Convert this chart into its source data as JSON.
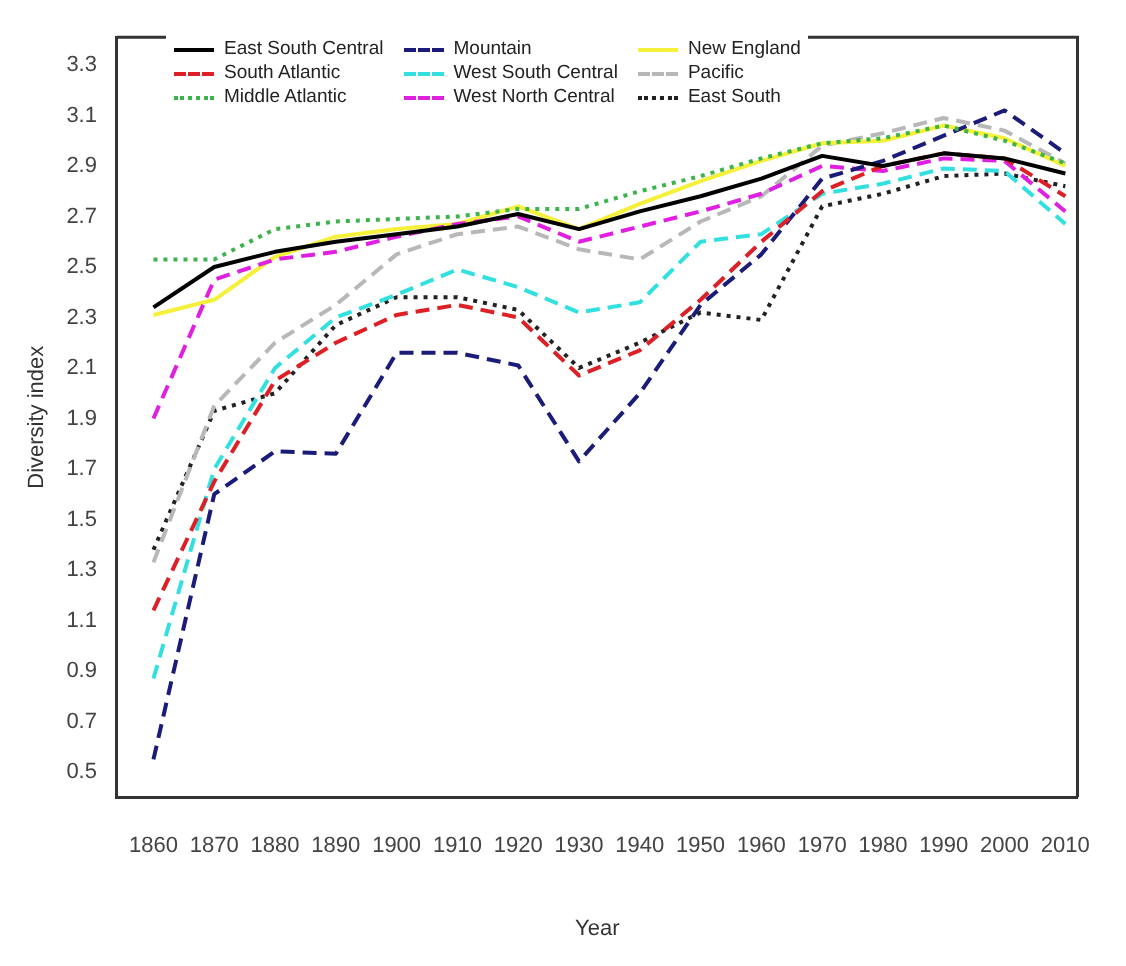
{
  "chart_data": {
    "type": "line",
    "xlabel": "Year",
    "ylabel": "Diversity index",
    "x": [
      1860,
      1870,
      1880,
      1890,
      1900,
      1910,
      1920,
      1930,
      1940,
      1950,
      1960,
      1970,
      1980,
      1990,
      2000,
      2010
    ],
    "xlim": [
      1854,
      2012
    ],
    "xticks": [
      1860,
      1870,
      1880,
      1890,
      1900,
      1910,
      1920,
      1930,
      1940,
      1950,
      1960,
      1970,
      1980,
      1990,
      2000,
      2010
    ],
    "ylim": [
      0.4,
      3.41
    ],
    "yticks": [
      0.5,
      0.7,
      0.9,
      1.1,
      1.3,
      1.5,
      1.7,
      1.9,
      2.1,
      2.3,
      2.5,
      2.7,
      2.9,
      3.1,
      3.3
    ],
    "grid": false,
    "legend": "top left",
    "marker": "none",
    "series": [
      {
        "name": "East South Central",
        "color": "#000000",
        "line_style": "solid",
        "values": [
          2.34,
          2.5,
          2.56,
          2.6,
          2.63,
          2.66,
          2.71,
          2.65,
          2.72,
          2.78,
          2.85,
          2.94,
          2.9,
          2.95,
          2.93,
          2.87
        ]
      },
      {
        "name": "South Atlantic",
        "color": "#dd1f26",
        "line_style": "dashed",
        "values": [
          1.14,
          1.65,
          2.05,
          2.2,
          2.31,
          2.35,
          2.3,
          2.07,
          2.17,
          2.37,
          2.6,
          2.8,
          2.9,
          2.95,
          2.93,
          2.78
        ]
      },
      {
        "name": "Middle Atlantic",
        "color": "#3cb44b",
        "line_style": "dotted",
        "values": [
          2.53,
          2.53,
          2.65,
          2.68,
          2.69,
          2.7,
          2.73,
          2.73,
          2.8,
          2.86,
          2.93,
          2.99,
          3.01,
          3.06,
          3.0,
          2.91
        ]
      },
      {
        "name": "Mountain",
        "color": "#1b1b7a",
        "line_style": "dashed",
        "values": [
          0.55,
          1.6,
          1.77,
          1.76,
          2.16,
          2.16,
          2.11,
          1.73,
          2.0,
          2.35,
          2.55,
          2.85,
          2.92,
          3.02,
          3.12,
          2.95
        ]
      },
      {
        "name": "West South Central",
        "color": "#33e0e0",
        "line_style": "dashed",
        "values": [
          0.87,
          1.7,
          2.1,
          2.3,
          2.39,
          2.49,
          2.42,
          2.32,
          2.36,
          2.6,
          2.63,
          2.79,
          2.83,
          2.89,
          2.88,
          2.67
        ]
      },
      {
        "name": "West North Central",
        "color": "#e020e0",
        "line_style": "dashed",
        "values": [
          1.9,
          2.45,
          2.53,
          2.56,
          2.62,
          2.67,
          2.7,
          2.6,
          2.66,
          2.72,
          2.79,
          2.9,
          2.88,
          2.93,
          2.92,
          2.72
        ]
      },
      {
        "name": "New England",
        "color": "#f5f03a",
        "line_style": "solid",
        "values": [
          2.31,
          2.37,
          2.54,
          2.62,
          2.65,
          2.67,
          2.74,
          2.65,
          2.75,
          2.84,
          2.92,
          2.99,
          3.0,
          3.06,
          3.01,
          2.9
        ]
      },
      {
        "name": "Pacific",
        "color": "#b8b8b8",
        "line_style": "dashed",
        "values": [
          1.33,
          1.95,
          2.2,
          2.35,
          2.55,
          2.63,
          2.66,
          2.57,
          2.53,
          2.68,
          2.78,
          2.98,
          3.03,
          3.09,
          3.04,
          2.91
        ]
      },
      {
        "name": "East South",
        "color": "#222222",
        "line_style": "dotted",
        "values": [
          1.38,
          1.93,
          2.0,
          2.27,
          2.38,
          2.38,
          2.33,
          2.1,
          2.2,
          2.32,
          2.29,
          2.74,
          2.79,
          2.86,
          2.87,
          2.82
        ]
      }
    ]
  }
}
